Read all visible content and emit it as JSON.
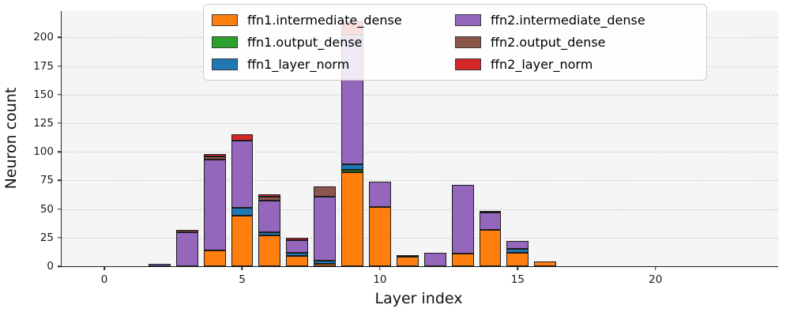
{
  "figure": {
    "background": "#ffffff",
    "plot_background": "#f5f5f5",
    "grid_color": "#cfcfcf",
    "axis_color": "#1a1a1a",
    "bar_edge_color": "#1c1c1c",
    "legend_border_color": "#cccccc"
  },
  "chart_data": {
    "type": "bar",
    "stacked": true,
    "title": "",
    "xlabel": "Layer index",
    "ylabel": "Neuron count",
    "xlim": [
      -1.55,
      24.45
    ],
    "ylim": [
      0,
      223
    ],
    "xticks": [
      0,
      5,
      10,
      15,
      20
    ],
    "yticks": [
      0,
      25,
      50,
      75,
      100,
      125,
      150,
      175,
      200
    ],
    "grid": "horizontal-dashed",
    "bar_width": 0.8,
    "legend": {
      "columns": 2,
      "position": "upper-center-right"
    },
    "x": [
      2,
      3,
      4,
      5,
      6,
      7,
      8,
      9,
      10,
      11,
      12,
      13,
      14,
      15,
      16
    ],
    "series": [
      {
        "name": "ffn1.intermediate_dense",
        "color": "#ff7f0e",
        "values": [
          0,
          0,
          14,
          44,
          27,
          9,
          2,
          82,
          52,
          8,
          0,
          11,
          32,
          12,
          4
        ]
      },
      {
        "name": "ffn1.output_dense",
        "color": "#2ca02c",
        "values": [
          0,
          0,
          0,
          0,
          0,
          0,
          0,
          2,
          0,
          0,
          0,
          0,
          0,
          0,
          0
        ]
      },
      {
        "name": "ffn1_layer_norm",
        "color": "#1f77b4",
        "values": [
          0,
          0,
          0,
          7,
          3,
          3,
          3,
          5,
          0,
          0,
          0,
          0,
          0,
          3,
          0
        ]
      },
      {
        "name": "ffn2.intermediate_dense",
        "color": "#9467bd",
        "values": [
          2,
          30,
          79,
          59,
          27,
          11,
          56,
          113,
          22,
          2,
          12,
          60,
          15,
          7,
          0
        ]
      },
      {
        "name": "ffn2.output_dense",
        "color": "#8c564b",
        "values": [
          0,
          2,
          3,
          0,
          4,
          0,
          9,
          0,
          0,
          0,
          0,
          0,
          1,
          0,
          0
        ]
      },
      {
        "name": "ffn2_layer_norm",
        "color": "#d62728",
        "values": [
          0,
          0,
          2,
          5,
          2,
          2,
          0,
          12,
          0,
          0,
          0,
          0,
          0,
          0,
          0
        ]
      }
    ]
  }
}
